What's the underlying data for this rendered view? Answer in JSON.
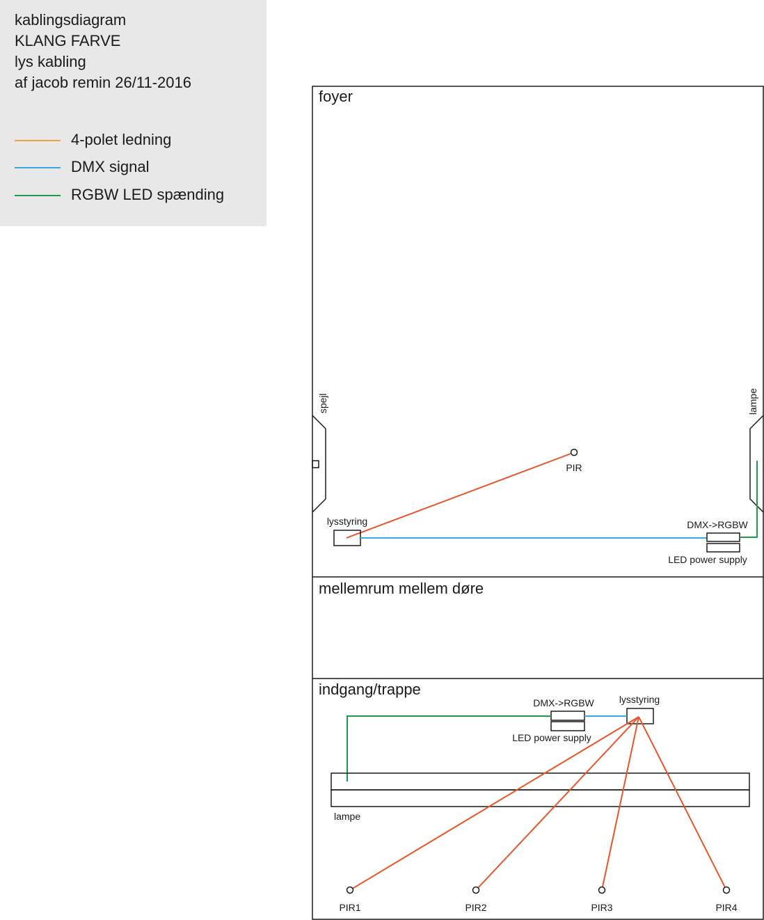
{
  "header": {
    "lines": [
      "kablingsdiagram",
      "KLANG FARVE",
      "lys kabling",
      "af jacob remin 26/11-2016"
    ]
  },
  "legend": [
    {
      "label": "4-polet ledning",
      "color": "#f0a23c"
    },
    {
      "label": "DMX signal",
      "color": "#3aa8e0"
    },
    {
      "label": "RGBW LED spænding",
      "color": "#1f9a4b"
    }
  ],
  "colors": {
    "wire_4pole_drawn": "#e8552a",
    "dmx": "#3aa8e0",
    "rgbw": "#1f9a4b",
    "outline": "#1a1a1a"
  },
  "rooms": {
    "foyer": {
      "title": "foyer",
      "mirror_label": "spejl",
      "lamp_label": "lampe",
      "pir_label": "PIR",
      "controller_label": "lysstyring",
      "converter_label": "DMX->RGBW",
      "psu_label": "LED power supply"
    },
    "gap": {
      "title": "mellemrum mellem døre"
    },
    "entrance": {
      "title": "indgang/trappe",
      "converter_label": "DMX->RGBW",
      "controller_label": "lysstyring",
      "psu_label": "LED power supply",
      "lamp_label": "lampe",
      "pirs": [
        "PIR1",
        "PIR2",
        "PIR3",
        "PIR4"
      ]
    }
  }
}
